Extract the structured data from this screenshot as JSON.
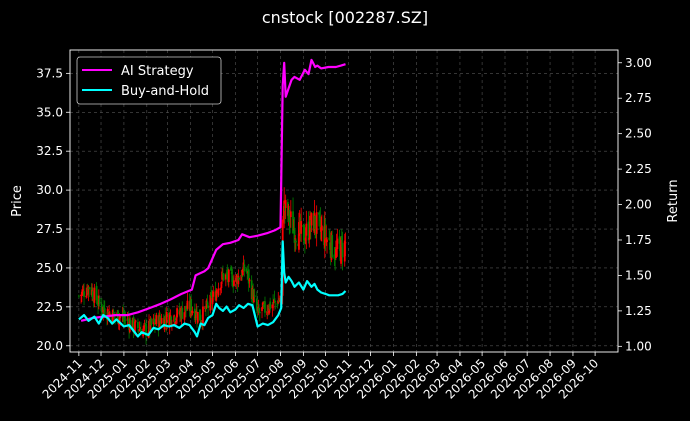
{
  "chart_data": {
    "type": "line",
    "title": "cnstock [002287.SZ]",
    "left_axis": {
      "label": "Price",
      "range": [
        19.6,
        39.0
      ],
      "ticks": [
        "20.0",
        "22.5",
        "25.0",
        "27.5",
        "30.0",
        "32.5",
        "35.0",
        "37.5"
      ]
    },
    "right_axis": {
      "label": "Return",
      "range": [
        0.96,
        3.09
      ],
      "ticks": [
        "1.00",
        "1.25",
        "1.50",
        "1.75",
        "2.00",
        "2.25",
        "2.50",
        "2.75",
        "3.00"
      ]
    },
    "x_ticks": [
      "2024-11",
      "2024-12",
      "2025-01",
      "2025-02",
      "2025-03",
      "2025-04",
      "2025-05",
      "2025-06",
      "2025-07",
      "2025-08",
      "2025-09",
      "2025-10",
      "2025-11",
      "2025-12",
      "2026-01",
      "2026-02",
      "2026-03",
      "2026-04",
      "2026-05",
      "2026-06",
      "2026-07",
      "2026-08",
      "2026-09",
      "2026-10"
    ],
    "x_range": [
      "2024-10-20",
      "2026-11-01"
    ],
    "grid": true,
    "legend_position": "top-left",
    "candle_colors": {
      "up": "#ff0000",
      "down": "#008000"
    },
    "series": [
      {
        "name": "AI Strategy",
        "axis": "right",
        "color": "#ff00ff",
        "x": [
          "2024-11-04",
          "2024-11-20",
          "2024-12-05",
          "2024-12-20",
          "2025-01-06",
          "2025-01-20",
          "2025-02-05",
          "2025-02-20",
          "2025-03-05",
          "2025-03-20",
          "2025-04-03",
          "2025-04-08",
          "2025-04-20",
          "2025-04-25",
          "2025-05-06",
          "2025-05-15",
          "2025-05-25",
          "2025-06-05",
          "2025-06-10",
          "2025-06-20",
          "2025-07-01",
          "2025-07-15",
          "2025-07-25",
          "2025-08-01",
          "2025-08-04",
          "2025-08-06",
          "2025-08-08",
          "2025-08-12",
          "2025-08-16",
          "2025-08-20",
          "2025-08-27",
          "2025-09-03",
          "2025-09-08",
          "2025-09-12",
          "2025-09-17",
          "2025-09-20",
          "2025-09-25",
          "2025-10-05",
          "2025-10-15",
          "2025-10-22",
          "2025-10-28"
        ],
        "y": [
          1.18,
          1.2,
          1.21,
          1.22,
          1.22,
          1.24,
          1.27,
          1.3,
          1.33,
          1.37,
          1.4,
          1.5,
          1.53,
          1.55,
          1.68,
          1.72,
          1.73,
          1.75,
          1.79,
          1.77,
          1.78,
          1.8,
          1.82,
          1.84,
          2.84,
          3.0,
          2.76,
          2.82,
          2.88,
          2.9,
          2.88,
          2.95,
          2.92,
          3.02,
          2.97,
          2.98,
          2.96,
          2.97,
          2.97,
          2.98,
          2.99
        ]
      },
      {
        "name": "Buy-and-Hold",
        "axis": "right",
        "color": "#00ffff",
        "x": [
          "2024-11-01",
          "2024-11-08",
          "2024-11-14",
          "2024-11-22",
          "2024-11-28",
          "2024-12-04",
          "2024-12-10",
          "2024-12-16",
          "2024-12-22",
          "2025-01-01",
          "2025-01-08",
          "2025-01-14",
          "2025-01-20",
          "2025-01-25",
          "2025-02-03",
          "2025-02-10",
          "2025-02-17",
          "2025-02-24",
          "2025-03-03",
          "2025-03-10",
          "2025-03-17",
          "2025-03-24",
          "2025-03-31",
          "2025-04-07",
          "2025-04-10",
          "2025-04-15",
          "2025-04-20",
          "2025-04-25",
          "2025-05-01",
          "2025-05-06",
          "2025-05-10",
          "2025-05-15",
          "2025-05-20",
          "2025-05-25",
          "2025-06-01",
          "2025-06-06",
          "2025-06-12",
          "2025-06-18",
          "2025-06-24",
          "2025-07-01",
          "2025-07-08",
          "2025-07-15",
          "2025-07-22",
          "2025-07-29",
          "2025-08-02",
          "2025-08-04",
          "2025-08-06",
          "2025-08-08",
          "2025-08-12",
          "2025-08-16",
          "2025-08-20",
          "2025-08-26",
          "2025-09-01",
          "2025-09-06",
          "2025-09-12",
          "2025-09-16",
          "2025-09-20",
          "2025-09-25",
          "2025-10-01",
          "2025-10-06",
          "2025-10-12",
          "2025-10-18",
          "2025-10-24",
          "2025-10-28"
        ],
        "y": [
          1.19,
          1.22,
          1.18,
          1.21,
          1.16,
          1.22,
          1.2,
          1.16,
          1.19,
          1.14,
          1.15,
          1.11,
          1.07,
          1.1,
          1.08,
          1.13,
          1.12,
          1.15,
          1.14,
          1.15,
          1.13,
          1.16,
          1.15,
          1.1,
          1.07,
          1.16,
          1.15,
          1.2,
          1.22,
          1.3,
          1.27,
          1.25,
          1.28,
          1.24,
          1.26,
          1.29,
          1.27,
          1.3,
          1.29,
          1.14,
          1.16,
          1.15,
          1.17,
          1.22,
          1.27,
          1.74,
          1.52,
          1.45,
          1.49,
          1.46,
          1.42,
          1.45,
          1.4,
          1.46,
          1.42,
          1.44,
          1.4,
          1.38,
          1.37,
          1.36,
          1.36,
          1.36,
          1.37,
          1.39
        ]
      }
    ],
    "price_anchors": {
      "x": [
        "2024-11-01",
        "2024-11-15",
        "2024-12-01",
        "2024-12-15",
        "2025-01-01",
        "2025-01-15",
        "2025-02-01",
        "2025-02-15",
        "2025-03-01",
        "2025-03-15",
        "2025-04-01",
        "2025-04-15",
        "2025-05-01",
        "2025-05-15",
        "2025-06-01",
        "2025-06-15",
        "2025-07-01",
        "2025-07-15",
        "2025-08-01",
        "2025-08-05",
        "2025-08-10",
        "2025-08-20",
        "2025-09-01",
        "2025-09-15",
        "2025-10-01",
        "2025-10-15",
        "2025-10-28"
      ],
      "y": [
        23.2,
        23.8,
        22.5,
        22.0,
        21.8,
        21.2,
        21.0,
        21.6,
        21.8,
        22.0,
        22.5,
        21.8,
        23.0,
        24.5,
        24.2,
        25.0,
        22.0,
        22.5,
        23.0,
        29.0,
        28.5,
        27.5,
        27.0,
        28.0,
        27.0,
        26.0,
        26.5
      ]
    }
  }
}
